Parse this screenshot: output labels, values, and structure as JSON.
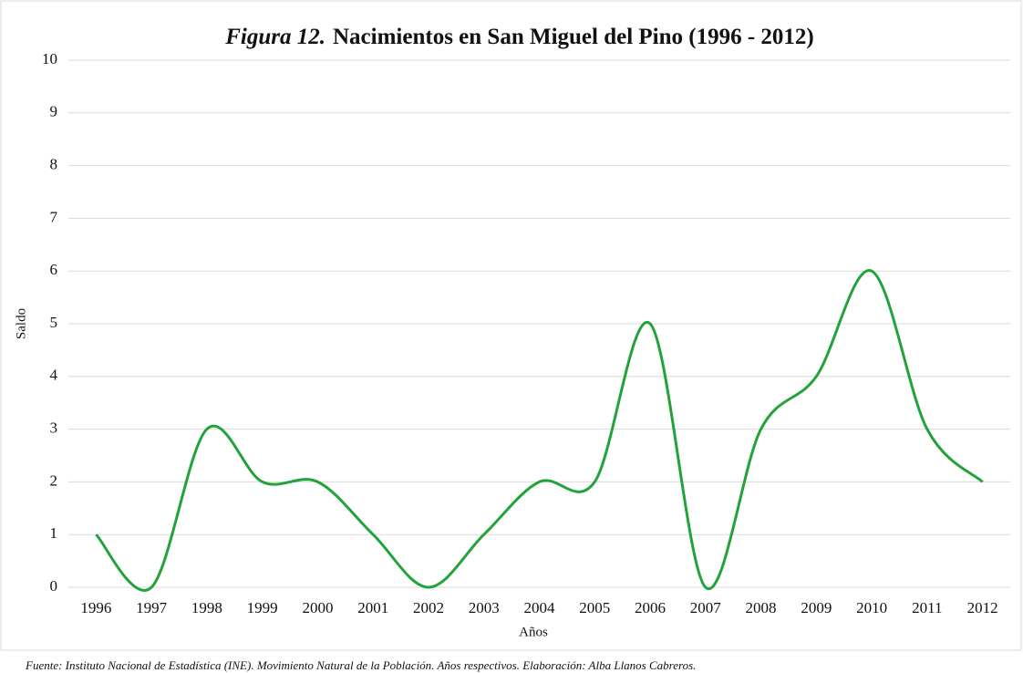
{
  "chart_data": {
    "type": "line",
    "title_label": "Figura 12.",
    "title": "Nacimientos en San Miguel del Pino (1996 - 2012)",
    "categories": [
      "1996",
      "1997",
      "1998",
      "1999",
      "2000",
      "2001",
      "2002",
      "2003",
      "2004",
      "2005",
      "2006",
      "2007",
      "2008",
      "2009",
      "2010",
      "2011",
      "2012"
    ],
    "series": [
      {
        "name": "Nacimientos",
        "color": "#22a33a",
        "values": [
          1,
          0,
          3,
          2,
          2,
          1,
          0,
          1,
          2,
          2,
          5,
          0,
          3,
          4,
          6,
          3,
          2
        ]
      }
    ],
    "ylim": [
      0,
      10
    ],
    "yticks": [
      0,
      1,
      2,
      3,
      4,
      5,
      6,
      7,
      8,
      9,
      10
    ],
    "grid": true,
    "smooth": true,
    "x_label": "Años",
    "y_label": "Saldo",
    "source": "Fuente: Instituto Nacional de Estadística (INE). Movimiento Natural de la Población. Años respectivos. Elaboración: Alba Llanos Cabreros."
  }
}
